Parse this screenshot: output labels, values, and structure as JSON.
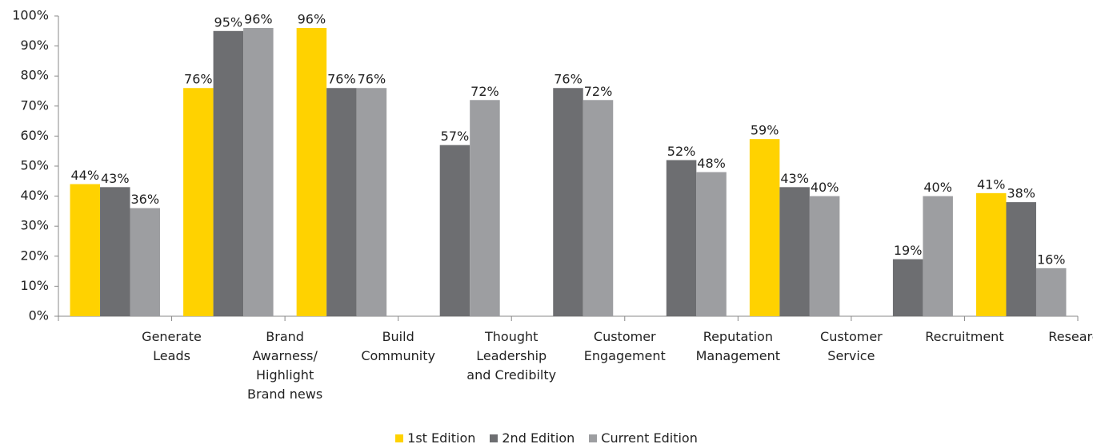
{
  "chart_data": {
    "type": "bar",
    "categories": [
      "Generate\nLeads",
      "Brand\nAwarness/\nHighlight\nBrand news",
      "Build\nCommunity",
      "Thought\nLeadership\nand Credibilty",
      "Customer\nEngagement",
      "Reputation\nManagement",
      "Customer\nService",
      "Recruitment",
      "Research"
    ],
    "series": [
      {
        "name": "1st Edition",
        "color": "#ffd200",
        "values": [
          44,
          76,
          96,
          null,
          null,
          null,
          59,
          null,
          41
        ],
        "value_labels": [
          "44%",
          "76%",
          "96%",
          null,
          null,
          null,
          "59%",
          null,
          "41%"
        ]
      },
      {
        "name": "2nd Edition",
        "color": "#6d6e71",
        "values": [
          43,
          95,
          76,
          57,
          76,
          52,
          43,
          19,
          38
        ],
        "value_labels": [
          "43%",
          "95%",
          "76%",
          "57%",
          "76%",
          "52%",
          "43%",
          "19%",
          "38%"
        ]
      },
      {
        "name": "Current Edition",
        "color": "#9d9ea1",
        "values": [
          36,
          96,
          76,
          72,
          72,
          48,
          40,
          40,
          16
        ],
        "value_labels": [
          "36%",
          "96%",
          "76%",
          "72%",
          "72%",
          "48%",
          "40%",
          "40%",
          "16%"
        ]
      }
    ],
    "ylim": [
      0,
      100
    ],
    "yticks": [
      {
        "value": 0,
        "label": "0%"
      },
      {
        "value": 10,
        "label": "10%"
      },
      {
        "value": 20,
        "label": "20%"
      },
      {
        "value": 30,
        "label": "30%"
      },
      {
        "value": 40,
        "label": "40%"
      },
      {
        "value": 50,
        "label": "50%"
      },
      {
        "value": 60,
        "label": "60%"
      },
      {
        "value": 70,
        "label": "70%"
      },
      {
        "value": 80,
        "label": "80%"
      },
      {
        "value": 90,
        "label": "90%"
      },
      {
        "value": 100,
        "label": "100%"
      }
    ],
    "legend": "bottom",
    "grid": false
  }
}
